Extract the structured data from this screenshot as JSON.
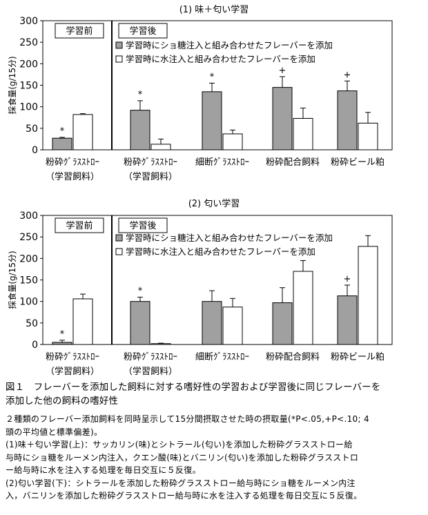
{
  "chart_data": [
    {
      "type": "bar",
      "title": "(1) 味＋匂い学習",
      "ylabel": "採食量(g/15分)",
      "ylim": [
        0,
        300
      ],
      "yticks": [
        "0",
        "50",
        "100",
        "150",
        "200",
        "250",
        "300"
      ],
      "categories": [
        [
          "粉砕ｸﾞﾗｽｽﾄﾛｰ",
          "（学習飼料）"
        ],
        [
          "粉砕ｸﾞﾗｽｽﾄﾛｰ",
          "（学習飼料）"
        ],
        [
          "細断ｸﾞﾗｽｽﾄﾛｰ"
        ],
        [
          "粉砕配合飼料"
        ],
        [
          "粉砕ビール粕"
        ]
      ],
      "series": [
        {
          "name": "学習時にショ糖注入と組み合わせたフレーバーを添加",
          "color": "#a0a0a0",
          "values": [
            27,
            92,
            135,
            145,
            137
          ],
          "errors": [
            2,
            22,
            20,
            25,
            23
          ]
        },
        {
          "name": "学習時に水注入と組み合わせたフレーバーを添加",
          "color": "#ffffff",
          "values": [
            82,
            13,
            37,
            73,
            62
          ],
          "errors": [
            2,
            12,
            9,
            24,
            25
          ]
        }
      ],
      "marks": [
        "*",
        "*",
        "*",
        "+",
        "+"
      ],
      "phase_labels": [
        "学習前",
        "学習後"
      ],
      "legend_position": "top-right",
      "grid": false
    },
    {
      "type": "bar",
      "title": "(2) 匂い学習",
      "ylabel": "採食量(g/15分)",
      "ylim": [
        0,
        300
      ],
      "yticks": [
        "0",
        "50",
        "100",
        "150",
        "200",
        "250",
        "300"
      ],
      "categories": [
        [
          "粉砕ｸﾞﾗｽｽﾄﾛｰ",
          "（学習飼料）"
        ],
        [
          "粉砕ｸﾞﾗｽｽﾄﾛｰ",
          "（学習飼料）"
        ],
        [
          "細断ｸﾞﾗｽｽﾄﾛｰ"
        ],
        [
          "粉砕配合飼料"
        ],
        [
          "粉砕ビール粕"
        ]
      ],
      "series": [
        {
          "name": "学習時にショ糖注入と組み合わせたフレーバーを添加",
          "color": "#a0a0a0",
          "values": [
            5,
            100,
            100,
            97,
            113
          ],
          "errors": [
            5,
            10,
            25,
            35,
            25
          ]
        },
        {
          "name": "学習時に水注入と組み合わせたフレーバーを添加",
          "color": "#ffffff",
          "values": [
            106,
            2,
            87,
            170,
            228
          ],
          "errors": [
            11,
            1,
            20,
            25,
            25
          ]
        }
      ],
      "marks": [
        "*",
        "*",
        "",
        "",
        "+"
      ],
      "phase_labels": [
        "学習前",
        "学習後"
      ],
      "legend_position": "top-right",
      "grid": false
    }
  ],
  "caption": {
    "line1": "図１　フレーバーを添加した飼料に対する嗜好性の学習および学習後に同じフレーバーを",
    "line2": "添加した他の飼料の嗜好性"
  },
  "notes": [
    "２種類のフレーバー添加飼料を同時呈示して15分間摂取させた時の摂取量(*P<.05,+P<.10; 4",
    "頭の平均値と標準偏差)。",
    "(1)味＋匂い学習(上)：サッカリン(味)とシトラール(匂い)を添加した粉砕グラスストロー給",
    "与時にショ糖をルーメン内注入，クエン酸(味)とバニリン(匂い)を添加した粉砕グラスストロ",
    "ー給与時に水を注入する処理を毎日交互に５反復。",
    "(2)匂い学習(下)：シトラールを添加した粉砕グラスストロー給与時にショ糖をルーメン内注",
    "入，バニリンを添加した粉砕グラスストロー給与時に水を注入する処理を毎日交互に５反復。"
  ]
}
